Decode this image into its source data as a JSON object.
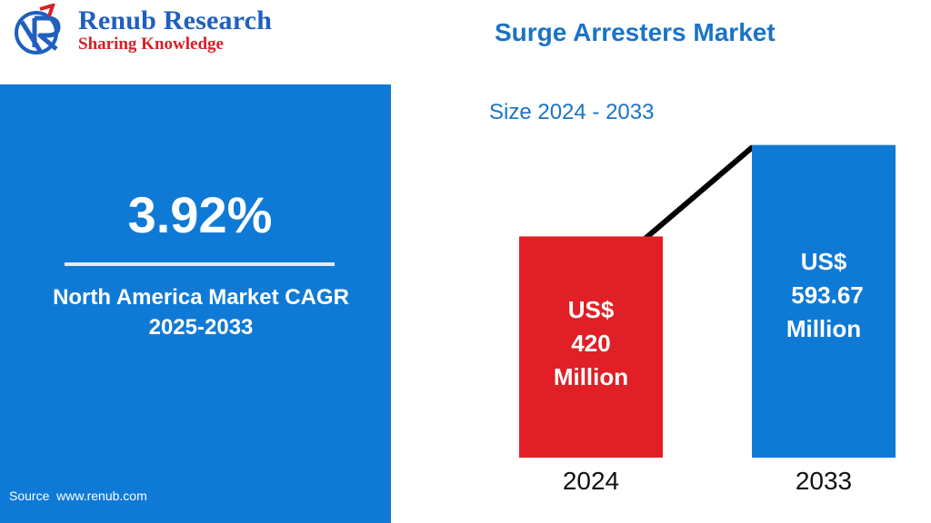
{
  "brand": {
    "name": "Renub Research",
    "tagline": "Sharing Knowledge"
  },
  "cagr": {
    "value": "3.92%",
    "label_line1": "North America Market CAGR",
    "label_line2": "2025-2033"
  },
  "source": "Source  www.renub.com",
  "colors": {
    "panel_blue": "#0f7ad6",
    "bar_2024": "#e01f26",
    "bar_2033": "#0f7ad6",
    "title_blue": "#1a73c8",
    "trend_line": "#000000"
  },
  "chart_data": {
    "type": "bar",
    "title": "Surge Arresters Market",
    "subtitle": "Size 2024 - 2033",
    "categories": [
      "2024",
      "2033"
    ],
    "values": [
      420,
      593.67
    ],
    "unit": "US$ Million",
    "data_labels": [
      [
        "US$",
        "420",
        "Million"
      ],
      [
        "US$",
        "593.67",
        "Million"
      ]
    ],
    "xlabel": "",
    "ylabel": "",
    "ylim": [
      0,
      700
    ],
    "grid": false,
    "trend_line": true
  }
}
